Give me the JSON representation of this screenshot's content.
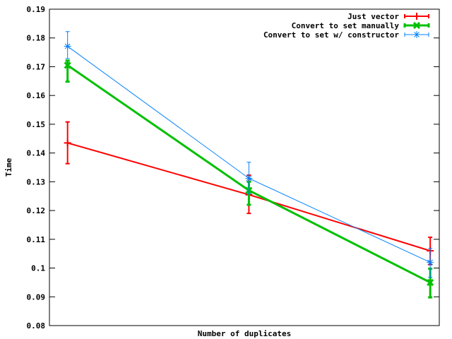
{
  "chart_data": {
    "type": "line",
    "title": "",
    "xlabel": "Number of duplicates",
    "ylabel": "Time",
    "x": [
      1,
      2,
      3
    ],
    "ylim": [
      0.08,
      0.19
    ],
    "yticks": [
      0.08,
      0.09,
      0.1,
      0.11,
      0.12,
      0.13,
      0.14,
      0.15,
      0.16,
      0.17,
      0.18,
      0.19
    ],
    "ytick_labels": [
      "0.08",
      "0.09",
      "0.1",
      "0.11",
      "0.12",
      "0.13",
      "0.14",
      "0.15",
      "0.16",
      "0.17",
      "0.18",
      "0.19"
    ],
    "grid": false,
    "legend_position": "top-right",
    "series": [
      {
        "name": "Just vector",
        "color": "#ff0000",
        "marker": "plus",
        "values": [
          0.1435,
          0.1255,
          0.106
        ],
        "err_low": [
          0.1363,
          0.119,
          0.1012
        ],
        "err_high": [
          0.1508,
          0.1323,
          0.1107
        ]
      },
      {
        "name": "Convert to set manually",
        "color": "#00c000",
        "marker": "cross",
        "values": [
          0.1705,
          0.127,
          0.095
        ],
        "err_low": [
          0.1648,
          0.122,
          0.0898
        ],
        "err_high": [
          0.1721,
          0.13,
          0.0998
        ]
      },
      {
        "name": "Convert to set w/ constructor",
        "color": "#0080ff",
        "marker": "star",
        "values": [
          0.1771,
          0.1312,
          0.102
        ],
        "err_low": [
          0.1728,
          0.1258,
          0.0968
        ],
        "err_high": [
          0.1822,
          0.1368,
          0.1068
        ]
      }
    ]
  }
}
